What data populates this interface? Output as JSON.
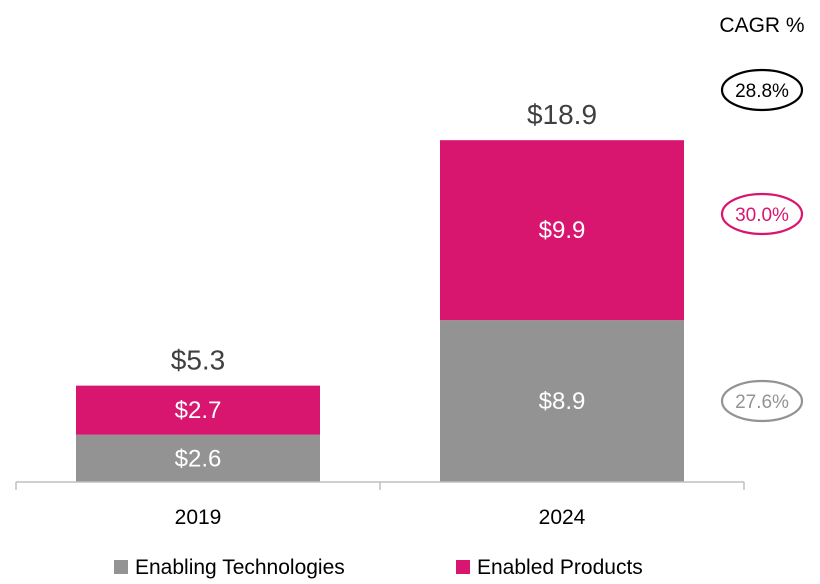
{
  "chart_data": {
    "type": "bar",
    "stacked": true,
    "title": "",
    "xlabel": "",
    "ylabel": "",
    "categories": [
      "2019",
      "2024"
    ],
    "series": [
      {
        "name": "Enabling Technologies",
        "color": "#939393",
        "values": [
          2.6,
          8.9
        ],
        "labels": [
          "$2.6",
          "$8.9"
        ]
      },
      {
        "name": "Enabled Products",
        "color": "#d8166f",
        "values": [
          2.7,
          9.9
        ],
        "labels": [
          "$2.7",
          "$9.9"
        ]
      }
    ],
    "totals": [
      5.3,
      18.9
    ],
    "total_labels": [
      "$5.3",
      "$18.9"
    ],
    "ylim": [
      0,
      19.8
    ],
    "legend_position": "bottom",
    "cagr": {
      "header": "CAGR %",
      "items": [
        {
          "series": "Total",
          "label": "28.8%",
          "color": "#000000"
        },
        {
          "series": "Enabled Products",
          "label": "30.0%",
          "color": "#d8166f"
        },
        {
          "series": "Enabling Technologies",
          "label": "27.6%",
          "color": "#939393"
        }
      ]
    }
  }
}
